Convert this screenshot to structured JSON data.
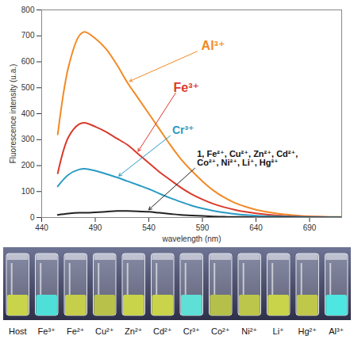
{
  "chart_data": {
    "type": "line",
    "x_label": "wavelength (nm)",
    "y_label": "Fluorescence intensity (u.a.)",
    "x": [
      455,
      465,
      475,
      480,
      490,
      500,
      510,
      520,
      530,
      540,
      550,
      560,
      570,
      580,
      590,
      600,
      610,
      620,
      630,
      640,
      660,
      680,
      700,
      720
    ],
    "series": [
      {
        "name": "Al³⁺",
        "color": "#f28a26",
        "values": [
          320,
          580,
          700,
          715,
          690,
          650,
          590,
          520,
          460,
          400,
          340,
          280,
          225,
          180,
          140,
          105,
          78,
          57,
          42,
          30,
          15,
          7,
          3,
          2
        ]
      },
      {
        "name": "Fe³⁺",
        "color": "#d93a2b",
        "values": [
          170,
          310,
          360,
          365,
          350,
          330,
          305,
          280,
          245,
          210,
          175,
          145,
          115,
          90,
          70,
          53,
          40,
          30,
          22,
          16,
          8,
          4,
          2,
          1
        ]
      },
      {
        "name": "Cr³⁺",
        "color": "#2a9bc4",
        "values": [
          120,
          165,
          185,
          188,
          180,
          168,
          155,
          140,
          125,
          110,
          92,
          75,
          60,
          46,
          35,
          26,
          19,
          14,
          10,
          7,
          4,
          2,
          1,
          1
        ]
      },
      {
        "name": "1, Fe²⁺, Cu²⁺, Zn²⁺, Cd²⁺, Co²⁺, Ni²⁺, Li⁺, Hg²⁺",
        "color": "#222222",
        "values": [
          10,
          15,
          18,
          18,
          20,
          22,
          25,
          25,
          24,
          22,
          18,
          14,
          10,
          8,
          6,
          4,
          3,
          2,
          2,
          1,
          1,
          0,
          0,
          0
        ]
      }
    ],
    "xlim": [
      440,
      720
    ],
    "xticks": [
      440,
      490,
      540,
      590,
      640,
      690
    ],
    "ylim": [
      0,
      800
    ],
    "yticks": [
      0,
      100,
      200,
      300,
      400,
      500,
      600,
      700,
      800
    ],
    "grid": false
  },
  "photo": {
    "labels": [
      "Host",
      "Fe³⁺",
      "Fe²⁺",
      "Cu²⁺",
      "Zn²⁺",
      "Cd²⁺",
      "Cr³⁺",
      "Co²⁺",
      "Ni²⁺",
      "Li⁺",
      "Hg²⁺",
      "Al³⁺"
    ],
    "colors": [
      "#c9d44a",
      "#4ee0d8",
      "#c6cf4a",
      "#b8c24a",
      "#c9d44a",
      "#c9d44a",
      "#5fe0d6",
      "#b5c04a",
      "#bcc64a",
      "#c9d44a",
      "#c0c84a",
      "#4ee6e0"
    ]
  }
}
